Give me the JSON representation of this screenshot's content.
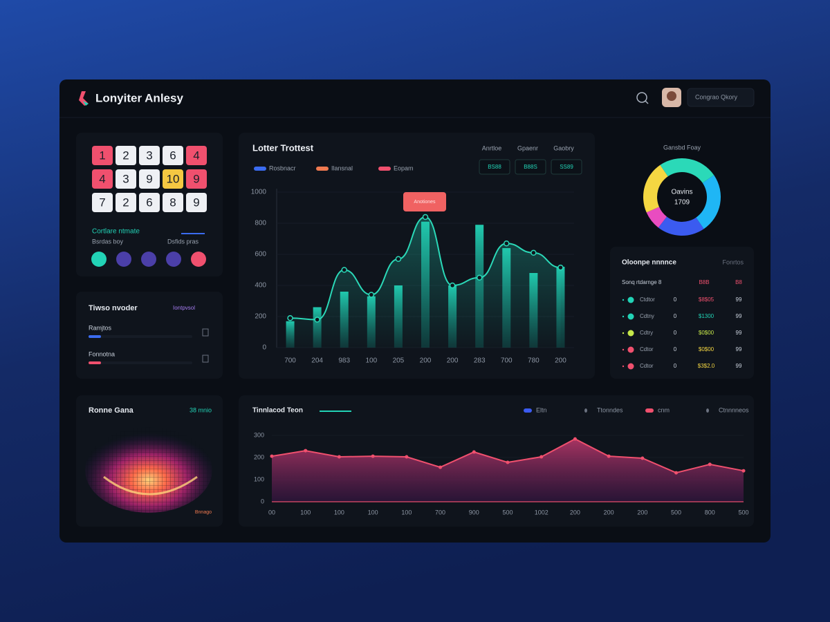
{
  "header": {
    "title": "Lonyiter Anlesy",
    "user": "Congrao Qkory"
  },
  "number_panel": {
    "rows": [
      [
        1,
        2,
        3,
        6,
        4
      ],
      [
        4,
        3,
        9,
        10,
        9
      ],
      [
        7,
        2,
        6,
        8,
        9
      ]
    ],
    "colors": [
      [
        "#f0506e",
        "#eef0f4",
        "#eef0f4",
        "#eef0f4",
        "#f0506e"
      ],
      [
        "#f0506e",
        "#eef0f4",
        "#eef0f4",
        "#f5c842",
        "#f0506e"
      ],
      [
        "#eef0f4",
        "#eef0f4",
        "#eef0f4",
        "#eef0f4",
        "#eef0f4"
      ]
    ],
    "label": "Cortlare ntmate",
    "sub_left": "Bsrdas boy",
    "sub_right": "Dsfids pras",
    "dots": [
      "#22d3b6",
      "#4b3fa8",
      "#4b3fa8",
      "#4b3fa8",
      "#f0506e"
    ]
  },
  "trend_panel": {
    "title": "Tiwso nvoder",
    "tag": "Iontpvsol",
    "items": [
      "Ramjtos",
      "Fonnotna"
    ]
  },
  "main_chart": {
    "type": "bar",
    "title": "Lotter Trottest",
    "legend": [
      {
        "name": "Rosbnacr",
        "color": "#3b6cf0"
      },
      {
        "name": "Ilansnal",
        "color": "#f07a50"
      },
      {
        "name": "Eopam",
        "color": "#f0506e"
      }
    ],
    "filters": [
      {
        "label": "Anrtloe",
        "button": "BS88"
      },
      {
        "label": "Gpaenr",
        "button": "B88S"
      },
      {
        "label": "Gaobry",
        "button": "SS89"
      }
    ],
    "annotation": "Anotiones",
    "categories": [
      "700",
      "204",
      "983",
      "100",
      "205",
      "200",
      "200",
      "283",
      "700",
      "780",
      "200"
    ],
    "series": [
      {
        "color": "#1fc2a8",
        "values": [
          170,
          260,
          360,
          330,
          400,
          810,
          400,
          790,
          640,
          480,
          520
        ]
      },
      {
        "color": "#2bd9b8",
        "values": [
          190,
          180,
          500,
          340,
          570,
          840,
          400,
          450,
          670,
          610,
          515
        ]
      }
    ],
    "ylim": [
      0,
      1000
    ],
    "yticks": [
      0,
      200,
      400,
      600,
      800,
      1000
    ]
  },
  "donut": {
    "type": "pie",
    "title": "Gansbd Foay",
    "center_label": "Oavins",
    "center_value": "1709",
    "values": [
      25,
      25,
      20,
      8,
      22
    ],
    "colors": [
      "#2bd9b8",
      "#1fb6f5",
      "#3b5bf0",
      "#e94cc0",
      "#f5d742"
    ]
  },
  "table": {
    "title": "Oloonpe nnnnce",
    "note": "Fonrtos",
    "header": [
      "Sonq rtdarnge 8",
      "B8B",
      "B8"
    ],
    "rows": [
      {
        "color": "#22d3b6",
        "value_color": "#f0506e",
        "cells": [
          "Ctdtor",
          "0",
          "$8$05",
          "99"
        ]
      },
      {
        "color": "#22d3b6",
        "value_color": "#22d3b6",
        "cells": [
          "Cdtny",
          "0",
          "$1300",
          "99"
        ]
      },
      {
        "color": "#c6e84a",
        "value_color": "#c6e84a",
        "cells": [
          "Cdtry",
          "0",
          "$0$00",
          "99"
        ]
      },
      {
        "color": "#f0506e",
        "value_color": "#f5d742",
        "cells": [
          "Cdtor",
          "0",
          "$0$00",
          "99"
        ]
      },
      {
        "color": "#f0506e",
        "value_color": "#f5d742",
        "cells": [
          "Cdtor",
          "0",
          "$3$2.0",
          "99"
        ]
      }
    ]
  },
  "heat_panel": {
    "title": "Ronne Gana",
    "tag": "38 mnio",
    "note": "Bnnago"
  },
  "area_chart": {
    "type": "area",
    "title": "Tinnlacod Teon",
    "legend": [
      {
        "name": "Eltn",
        "color": "#3b5bf0"
      },
      {
        "name": "Ttonndes",
        "color": "#6b7280"
      },
      {
        "name": "cnm",
        "color": "#f0506e"
      },
      {
        "name": "Ctnnnneos",
        "color": "#6b7280"
      }
    ],
    "categories": [
      "00",
      "100",
      "100",
      "100",
      "100",
      "700",
      "900",
      "500",
      "1002",
      "200",
      "200",
      "200",
      "500",
      "800",
      "500"
    ],
    "values": [
      206,
      231,
      203,
      206,
      203,
      156,
      225,
      178,
      203,
      284,
      206,
      197,
      131,
      169,
      140
    ],
    "color": "#f0506e",
    "ylim": [
      0,
      300
    ],
    "yticks": [
      0,
      100,
      200,
      300
    ]
  }
}
